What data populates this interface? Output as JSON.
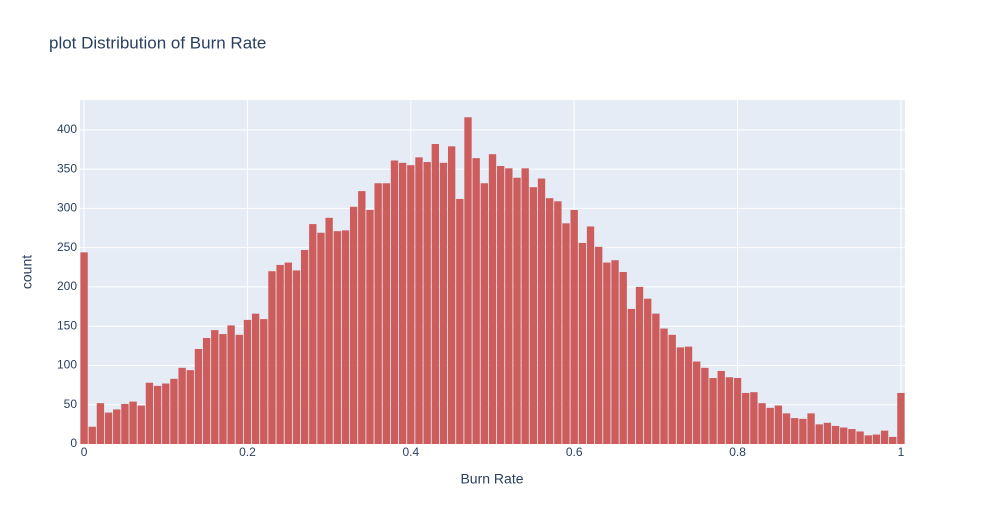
{
  "chart_data": {
    "type": "histogram",
    "title": "plot Distribution of Burn Rate",
    "x_label": "Burn Rate",
    "y_label": "count",
    "color": "#cd5c5c",
    "grid": true,
    "bins": [
      -0.005,
      0.005,
      0.015,
      0.025,
      0.035,
      0.045,
      0.055,
      0.065,
      0.075,
      0.085,
      0.095,
      0.105,
      0.115,
      0.125,
      0.135,
      0.145,
      0.155,
      0.165,
      0.175,
      0.185,
      0.195,
      0.205,
      0.215,
      0.225,
      0.235,
      0.245,
      0.255,
      0.265,
      0.275,
      0.285,
      0.295,
      0.305,
      0.315,
      0.325,
      0.335,
      0.345,
      0.355,
      0.365,
      0.375,
      0.385,
      0.395,
      0.405,
      0.415,
      0.425,
      0.435,
      0.445,
      0.455,
      0.465,
      0.475,
      0.485,
      0.495,
      0.505,
      0.515,
      0.525,
      0.535,
      0.545,
      0.555,
      0.565,
      0.575,
      0.585,
      0.595,
      0.605,
      0.615,
      0.625,
      0.635,
      0.645,
      0.655,
      0.665,
      0.675,
      0.685,
      0.695,
      0.705,
      0.715,
      0.725,
      0.735,
      0.745,
      0.755,
      0.765,
      0.775,
      0.785,
      0.795,
      0.805,
      0.815,
      0.825,
      0.835,
      0.845,
      0.855,
      0.865,
      0.875,
      0.885,
      0.895,
      0.905,
      0.915,
      0.925,
      0.935,
      0.945,
      0.955,
      0.965,
      0.975,
      0.985,
      0.995,
      1.005
    ],
    "values": [
      244,
      22,
      52,
      40,
      44,
      51,
      54,
      49,
      78,
      74,
      77,
      83,
      97,
      94,
      121,
      135,
      145,
      140,
      151,
      139,
      158,
      166,
      159,
      220,
      228,
      231,
      221,
      247,
      280,
      269,
      288,
      271,
      272,
      302,
      322,
      298,
      332,
      332,
      361,
      358,
      355,
      365,
      359,
      382,
      358,
      379,
      312,
      416,
      364,
      332,
      369,
      354,
      351,
      339,
      351,
      327,
      338,
      313,
      309,
      281,
      298,
      256,
      277,
      251,
      231,
      234,
      219,
      172,
      200,
      185,
      166,
      147,
      139,
      123,
      124,
      105,
      97,
      84,
      93,
      85,
      84,
      65,
      66,
      52,
      46,
      49,
      39,
      33,
      32,
      39,
      25,
      27,
      23,
      21,
      19,
      16,
      11,
      12,
      17,
      9,
      65
    ],
    "xlim": [
      -0.005,
      1.005
    ],
    "xticks": [
      0,
      0.2,
      0.4,
      0.6,
      0.8,
      1
    ],
    "ylim": [
      0,
      438
    ],
    "yticks": [
      0,
      50,
      100,
      150,
      200,
      250,
      300,
      350,
      400
    ]
  }
}
